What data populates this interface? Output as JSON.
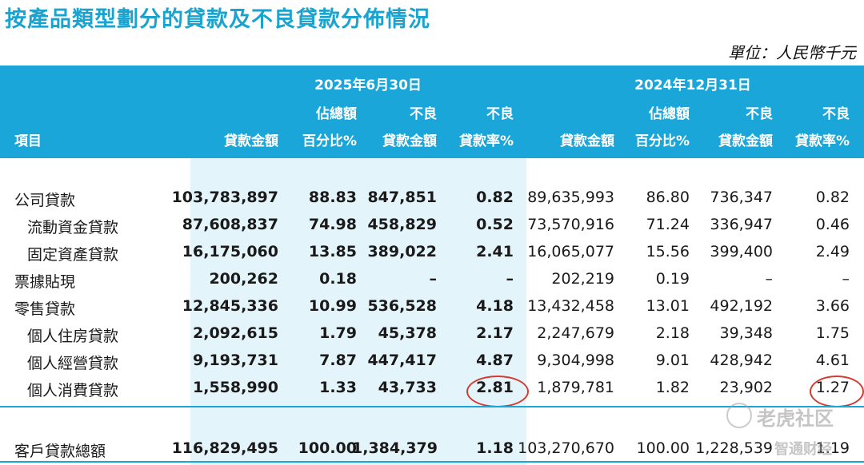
{
  "title": "按產品類型劃分的貸款及不良貸款分佈情況",
  "unit": "單位：人民幣千元",
  "header": {
    "period1": "2025年6月30日",
    "period2": "2024年12月31日",
    "item": "項目",
    "loan_amount": "貸款金額",
    "pct_total_top": "佔總額",
    "pct_total_bottom": "百分比%",
    "npl_top": "不良",
    "npl_bottom": "貸款金額",
    "npl_ratio_top": "不良",
    "npl_ratio_bottom": "貸款率%"
  },
  "rows": [
    {
      "label": "公司貸款",
      "c1": "103,783,897",
      "c2": "88.83",
      "c3": "847,851",
      "c4": "0.82",
      "c5": "89,635,993",
      "c6": "86.80",
      "c7": "736,347",
      "c8": "0.82"
    },
    {
      "label": "流動資金貸款",
      "c1": "87,608,837",
      "c2": "74.98",
      "c3": "458,829",
      "c4": "0.52",
      "c5": "73,570,916",
      "c6": "71.24",
      "c7": "336,947",
      "c8": "0.46"
    },
    {
      "label": "固定資產貸款",
      "c1": "16,175,060",
      "c2": "13.85",
      "c3": "389,022",
      "c4": "2.41",
      "c5": "16,065,077",
      "c6": "15.56",
      "c7": "399,400",
      "c8": "2.49"
    },
    {
      "label": "票據貼現",
      "c1": "200,262",
      "c2": "0.18",
      "c3": "–",
      "c4": "–",
      "c5": "202,219",
      "c6": "0.19",
      "c7": "–",
      "c8": "–"
    },
    {
      "label": "零售貸款",
      "c1": "12,845,336",
      "c2": "10.99",
      "c3": "536,528",
      "c4": "4.18",
      "c5": "13,432,458",
      "c6": "13.01",
      "c7": "492,192",
      "c8": "3.66"
    },
    {
      "label": "個人住房貸款",
      "c1": "2,092,615",
      "c2": "1.79",
      "c3": "45,378",
      "c4": "2.17",
      "c5": "2,247,679",
      "c6": "2.18",
      "c7": "39,348",
      "c8": "1.75"
    },
    {
      "label": "個人經營貸款",
      "c1": "9,193,731",
      "c2": "7.87",
      "c3": "447,417",
      "c4": "4.87",
      "c5": "9,304,998",
      "c6": "9.01",
      "c7": "428,942",
      "c8": "4.61"
    },
    {
      "label": "個人消費貸款",
      "c1": "1,558,990",
      "c2": "1.33",
      "c3": "43,733",
      "c4": "2.81",
      "c5": "1,879,781",
      "c6": "1.82",
      "c7": "23,902",
      "c8": "1.27"
    }
  ],
  "total": {
    "label": "客戶貸款總額",
    "c1": "116,829,495",
    "c2": "100.00",
    "c3": "1,384,379",
    "c4": "1.18",
    "c5": "103,270,670",
    "c6": "100.00",
    "c7": "1,228,539",
    "c8": "1.19"
  },
  "watermark": {
    "site": "老虎社区",
    "source": "智通财经"
  },
  "colors": {
    "accent": "#1aa6d9",
    "title": "#1ba3cf",
    "highlight": "#e4f4fb",
    "circle": "#d63a2f"
  }
}
